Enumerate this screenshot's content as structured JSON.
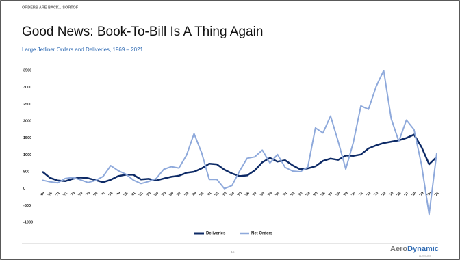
{
  "header": {
    "kicker": "ORDERS ARE BACK…SORTOF"
  },
  "footer": {
    "page": "15",
    "logo_left": "Aero",
    "logo_right": "Dynamic",
    "logo_sub": "ADVISORY"
  },
  "chart_data": {
    "type": "line",
    "title": "Good News: Book-To-Bill Is A Thing Again",
    "subtitle": "Large Jetliner Orders and Deliveries, 1969 – 2021",
    "categories": [
      "'69",
      "'70",
      "'71",
      "'72",
      "'73",
      "'74",
      "'75",
      "'76",
      "'77",
      "'78",
      "'79",
      "'80",
      "'81",
      "'82",
      "'83",
      "'84",
      "'85",
      "'86",
      "'87",
      "'88",
      "'89",
      "'90",
      "'91",
      "'92",
      "'93",
      "'94",
      "'95",
      "'96",
      "'97",
      "'98",
      "'99",
      "'00",
      "'01",
      "'02",
      "'03",
      "'04",
      "'05",
      "'06",
      "'07",
      "'08",
      "'09",
      "'10",
      "'11",
      "'12",
      "'13",
      "'14",
      "'15",
      "'16",
      "'17",
      "'18",
      "'19",
      "'20",
      "'21"
    ],
    "series": [
      {
        "name": "Deliveries",
        "color": "#0d2a66",
        "width": 2.5,
        "values": [
          500,
          320,
          240,
          220,
          290,
          330,
          310,
          250,
          190,
          260,
          370,
          410,
          410,
          270,
          290,
          240,
          300,
          350,
          380,
          470,
          500,
          600,
          740,
          720,
          560,
          450,
          370,
          390,
          540,
          780,
          910,
          800,
          840,
          690,
          570,
          600,
          660,
          820,
          890,
          850,
          980,
          970,
          1010,
          1190,
          1280,
          1350,
          1390,
          1430,
          1500,
          1600,
          1230,
          720,
          940
        ]
      },
      {
        "name": "Net Orders",
        "color": "#8ea9db",
        "width": 2,
        "values": [
          250,
          200,
          170,
          300,
          330,
          260,
          180,
          240,
          360,
          680,
          530,
          430,
          250,
          150,
          210,
          300,
          570,
          650,
          610,
          990,
          1630,
          1060,
          270,
          270,
          0,
          90,
          520,
          900,
          940,
          1140,
          760,
          1010,
          630,
          520,
          500,
          640,
          1800,
          1650,
          2150,
          1400,
          580,
          1370,
          2450,
          2350,
          3020,
          3500,
          2070,
          1400,
          2030,
          1750,
          700,
          -760,
          1050
        ]
      }
    ],
    "ylim": [
      -1000,
      3500
    ],
    "yticks": [
      -1000,
      -500,
      0,
      500,
      1000,
      1500,
      2000,
      2500,
      3000,
      3500
    ],
    "grid": false,
    "legend": "bottom"
  }
}
